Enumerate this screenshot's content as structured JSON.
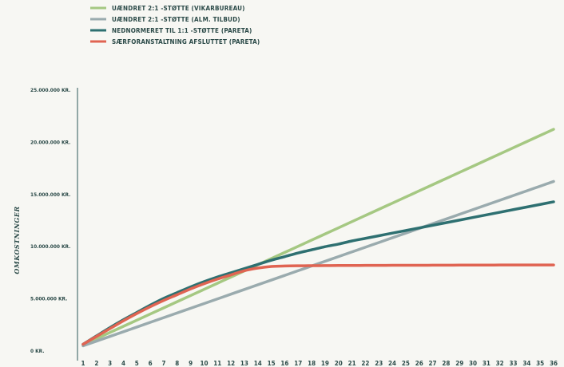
{
  "chart_data": {
    "type": "line",
    "ylabel": "OMKOSTNINGER",
    "xlabel": "",
    "ylim": [
      0,
      25000000
    ],
    "xlim": [
      1,
      36
    ],
    "yticks": [
      {
        "value": 0,
        "label": "0 KR."
      },
      {
        "value": 5000000,
        "label": "5.000.000 KR."
      },
      {
        "value": 10000000,
        "label": "10.000.000 KR."
      },
      {
        "value": 15000000,
        "label": "15.000.000 KR."
      },
      {
        "value": 20000000,
        "label": "20.000.000 KR."
      },
      {
        "value": 25000000,
        "label": "25.000.000 KR."
      }
    ],
    "x": [
      1,
      2,
      3,
      4,
      5,
      6,
      7,
      8,
      9,
      10,
      11,
      12,
      13,
      14,
      15,
      16,
      17,
      18,
      19,
      20,
      21,
      22,
      23,
      24,
      25,
      26,
      27,
      28,
      29,
      30,
      31,
      32,
      33,
      34,
      35,
      36
    ],
    "x_emphasis": 20,
    "legend_position": "top-left",
    "grid": false,
    "series": [
      {
        "name": "UÆNDRET 2:1 -STØTTE (VIKARBUREAU)",
        "color": "#a5c882",
        "values": [
          600000,
          1190000,
          1780000,
          2370000,
          2960000,
          3550000,
          4140000,
          4730000,
          5320000,
          5910000,
          6500000,
          7090000,
          7680000,
          8270000,
          8860000,
          9450000,
          10040000,
          10630000,
          11220000,
          11810000,
          12400000,
          12990000,
          13580000,
          14170000,
          14760000,
          15350000,
          15940000,
          16530000,
          17120000,
          17710000,
          18300000,
          18890000,
          19480000,
          20070000,
          20660000,
          21250000
        ]
      },
      {
        "name": "UÆNDRET 2:1 -STØTTE (ALM. TILBUD)",
        "color": "#9aabae",
        "values": [
          500000,
          950000,
          1400000,
          1850000,
          2300000,
          2750000,
          3200000,
          3650000,
          4100000,
          4550000,
          5000000,
          5450000,
          5900000,
          6350000,
          6800000,
          7250000,
          7700000,
          8150000,
          8600000,
          9050000,
          9500000,
          9950000,
          10400000,
          10850000,
          11300000,
          11750000,
          12200000,
          12650000,
          13100000,
          13550000,
          14000000,
          14450000,
          14900000,
          15350000,
          15800000,
          16250000
        ]
      },
      {
        "name": "NEDNORMERET TIL 1:1 -STØTTE (PARETA)",
        "color": "#2e7071",
        "values": [
          650000,
          1450000,
          2250000,
          3000000,
          3700000,
          4400000,
          5050000,
          5600000,
          6150000,
          6650000,
          7100000,
          7500000,
          7900000,
          8300000,
          8700000,
          9050000,
          9400000,
          9700000,
          10000000,
          10250000,
          10550000,
          10800000,
          11050000,
          11300000,
          11550000,
          11800000,
          12050000,
          12300000,
          12550000,
          12800000,
          13050000,
          13300000,
          13550000,
          13800000,
          14050000,
          14300000
        ]
      },
      {
        "name": "SÆRFORANSTALTNING AFSLUTTET (PARETA)",
        "color": "#e06452",
        "values": [
          650000,
          1400000,
          2150000,
          2900000,
          3600000,
          4250000,
          4850000,
          5400000,
          5950000,
          6450000,
          6900000,
          7300000,
          7700000,
          7950000,
          8100000,
          8150000,
          8170000,
          8180000,
          8190000,
          8200000,
          8200000,
          8205000,
          8210000,
          8215000,
          8220000,
          8220000,
          8225000,
          8230000,
          8235000,
          8240000,
          8240000,
          8245000,
          8250000,
          8250000,
          8250000,
          8250000
        ]
      }
    ]
  }
}
